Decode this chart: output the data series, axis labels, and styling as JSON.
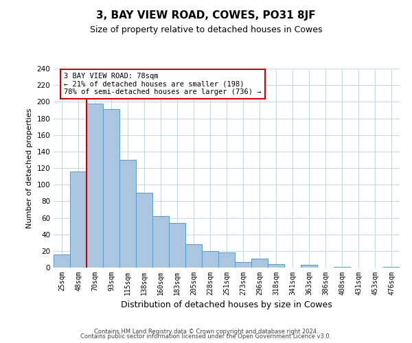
{
  "title_main": "3, BAY VIEW ROAD, COWES, PO31 8JF",
  "title_sub": "Size of property relative to detached houses in Cowes",
  "xlabel": "Distribution of detached houses by size in Cowes",
  "ylabel": "Number of detached properties",
  "bin_labels": [
    "25sqm",
    "48sqm",
    "70sqm",
    "93sqm",
    "115sqm",
    "138sqm",
    "160sqm",
    "183sqm",
    "205sqm",
    "228sqm",
    "251sqm",
    "273sqm",
    "296sqm",
    "318sqm",
    "341sqm",
    "363sqm",
    "386sqm",
    "408sqm",
    "431sqm",
    "453sqm",
    "476sqm"
  ],
  "bar_values": [
    16,
    116,
    198,
    191,
    130,
    90,
    62,
    54,
    28,
    20,
    18,
    7,
    11,
    4,
    0,
    3,
    0,
    1,
    0,
    0,
    1
  ],
  "bar_color": "#adc6e0",
  "bar_edge_color": "#5a9ac9",
  "ylim": [
    0,
    240
  ],
  "yticks": [
    0,
    20,
    40,
    60,
    80,
    100,
    120,
    140,
    160,
    180,
    200,
    220,
    240
  ],
  "property_label": "3 BAY VIEW ROAD: 78sqm",
  "annotation_line1": "← 21% of detached houses are smaller (198)",
  "annotation_line2": "78% of semi-detached houses are larger (736) →",
  "annotation_box_color": "#ffffff",
  "annotation_box_edge": "#cc0000",
  "line_color": "#cc0000",
  "footer1": "Contains HM Land Registry data © Crown copyright and database right 2024.",
  "footer2": "Contains public sector information licensed under the Open Government Licence v3.0.",
  "bg_color": "#ffffff",
  "grid_color": "#c8d8e8"
}
